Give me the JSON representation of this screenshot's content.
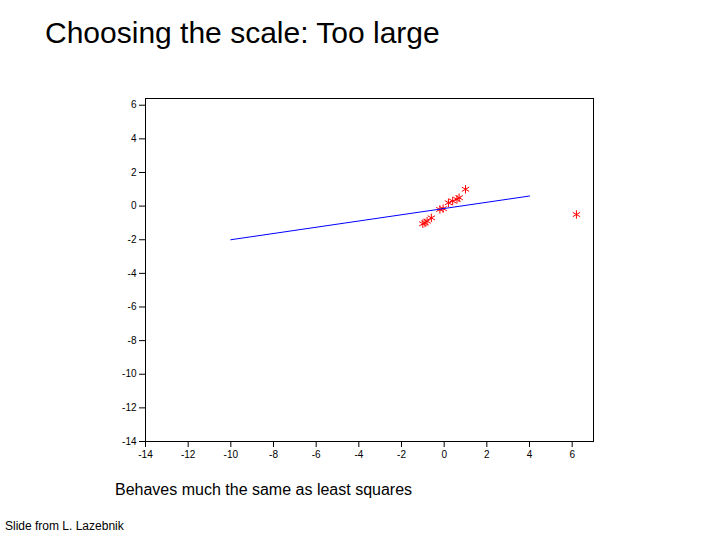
{
  "chart_data": {
    "type": "scatter",
    "title": "Choosing the scale: Too large",
    "annotations": [
      "Behaves much the same as least squares",
      "Slide from L. Lazebnik"
    ],
    "xlim": [
      -14,
      7
    ],
    "ylim": [
      -14,
      6.4
    ],
    "xticks": [
      -14,
      -12,
      -10,
      -8,
      -6,
      -4,
      -2,
      0,
      2,
      4,
      6
    ],
    "yticks": [
      -14,
      -12,
      -10,
      -8,
      -6,
      -4,
      -2,
      0,
      2,
      4,
      6
    ],
    "grid": false,
    "series": [
      {
        "type": "scatter",
        "color": "red",
        "marker": "asterisk",
        "x": [
          -1.0,
          -0.9,
          -0.8,
          -0.6,
          -0.2,
          -0.05,
          0.2,
          0.4,
          0.6,
          0.7,
          1.0,
          6.2
        ],
        "values": [
          -1.05,
          -1.0,
          -0.9,
          -0.7,
          -0.2,
          -0.15,
          0.2,
          0.3,
          0.4,
          0.5,
          1.0,
          -0.5
        ]
      },
      {
        "type": "line",
        "color": "blue",
        "line_style": "solid",
        "x": [
          -10,
          4
        ],
        "values": [
          -2,
          0.6
        ]
      }
    ]
  }
}
